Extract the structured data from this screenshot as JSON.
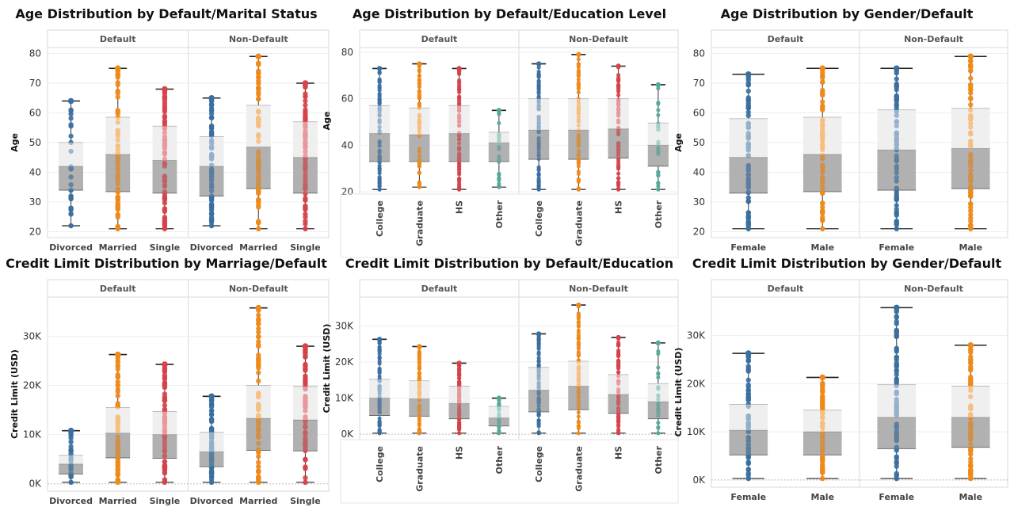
{
  "colors": {
    "blue": "#3b6fa0",
    "orange": "#ee8a1a",
    "red": "#d6434a",
    "teal": "#55a89a"
  },
  "chart_data": [
    {
      "id": "age-marital",
      "type": "box",
      "title": "Age Distribution by Default/Marital Status",
      "facets": [
        "Default",
        "Non-Default"
      ],
      "categories": [
        "Divorced",
        "Married",
        "Single"
      ],
      "colors": [
        "blue",
        "orange",
        "red"
      ],
      "ylabel": "Age",
      "ylim": [
        18,
        82
      ],
      "yticks": [
        20,
        30,
        40,
        50,
        60,
        70,
        80
      ],
      "ytick_labels": [
        "20",
        "30",
        "40",
        "50",
        "60",
        "70",
        "80"
      ],
      "rotate_labels": false,
      "boxes": [
        [
          {
            "min": 22,
            "q1": 34,
            "median": 42,
            "q3": 50,
            "max": 64
          },
          {
            "min": 21,
            "q1": 33.5,
            "median": 46,
            "q3": 58.5,
            "max": 75
          },
          {
            "min": 21,
            "q1": 33,
            "median": 44,
            "q3": 55.5,
            "max": 68
          }
        ],
        [
          {
            "min": 22,
            "q1": 32,
            "median": 42,
            "q3": 52,
            "max": 65
          },
          {
            "min": 21,
            "q1": 34.5,
            "median": 48.5,
            "q3": 62.5,
            "max": 79
          },
          {
            "min": 21,
            "q1": 33,
            "median": 45,
            "q3": 57,
            "max": 70
          }
        ]
      ]
    },
    {
      "id": "age-education",
      "type": "box",
      "title": "Age Distribution by Default/Education Level",
      "facets": [
        "Default",
        "Non-Default"
      ],
      "categories": [
        "College",
        "Graduate",
        "HS",
        "Other"
      ],
      "colors": [
        "blue",
        "orange",
        "red",
        "teal"
      ],
      "ylabel": "Age",
      "ylim": [
        19,
        82
      ],
      "yticks": [
        20,
        40,
        60,
        80
      ],
      "ytick_labels": [
        "20",
        "40",
        "60",
        "80"
      ],
      "rotate_labels": true,
      "boxes": [
        [
          {
            "min": 21,
            "q1": 33,
            "median": 45,
            "q3": 57,
            "max": 73
          },
          {
            "min": 22,
            "q1": 33,
            "median": 44.5,
            "q3": 56,
            "max": 75
          },
          {
            "min": 21,
            "q1": 33,
            "median": 45,
            "q3": 57,
            "max": 73
          },
          {
            "min": 22,
            "q1": 33,
            "median": 41,
            "q3": 45.5,
            "max": 55
          }
        ],
        [
          {
            "min": 21,
            "q1": 34,
            "median": 46.5,
            "q3": 60,
            "max": 75
          },
          {
            "min": 21,
            "q1": 34,
            "median": 46.5,
            "q3": 60,
            "max": 79
          },
          {
            "min": 21,
            "q1": 34.5,
            "median": 47,
            "q3": 60,
            "max": 74
          },
          {
            "min": 21,
            "q1": 31,
            "median": 40,
            "q3": 49.5,
            "max": 66
          }
        ]
      ]
    },
    {
      "id": "age-gender",
      "type": "box",
      "title": "Age Distribution by Gender/Default",
      "facets": [
        "Default",
        "Non-Default"
      ],
      "categories": [
        "Female",
        "Male"
      ],
      "colors": [
        "blue",
        "orange"
      ],
      "ylabel": "Age",
      "ylim": [
        18,
        82
      ],
      "yticks": [
        20,
        30,
        40,
        50,
        60,
        70,
        80
      ],
      "ytick_labels": [
        "20",
        "30",
        "40",
        "50",
        "60",
        "70",
        "80"
      ],
      "rotate_labels": false,
      "boxes": [
        [
          {
            "min": 21,
            "q1": 33,
            "median": 45,
            "q3": 58,
            "max": 73
          },
          {
            "min": 21,
            "q1": 33.5,
            "median": 46,
            "q3": 58.5,
            "max": 75
          }
        ],
        [
          {
            "min": 21,
            "q1": 34,
            "median": 47.5,
            "q3": 61,
            "max": 75
          },
          {
            "min": 21,
            "q1": 34.5,
            "median": 48,
            "q3": 61.5,
            "max": 79
          }
        ]
      ]
    },
    {
      "id": "credit-marriage",
      "type": "box",
      "title": "Credit Limit Distribution by Marriage/Default",
      "facets": [
        "Default",
        "Non-Default"
      ],
      "categories": [
        "Divorced",
        "Married",
        "Single"
      ],
      "colors": [
        "blue",
        "orange",
        "red"
      ],
      "ylabel": "Credit Limit (USD)",
      "ylim": [
        -1500,
        38000
      ],
      "yticks": [
        0,
        10000,
        20000,
        30000
      ],
      "ytick_labels": [
        "0K",
        "10K",
        "20K",
        "30K"
      ],
      "rotate_labels": false,
      "boxes": [
        [
          {
            "min": 300,
            "q1": 2000,
            "median": 4000,
            "q3": 5800,
            "max": 10800
          },
          {
            "min": 300,
            "q1": 5300,
            "median": 10300,
            "q3": 15500,
            "max": 26300
          },
          {
            "min": 300,
            "q1": 5200,
            "median": 10000,
            "q3": 14700,
            "max": 24300
          }
        ],
        [
          {
            "min": 300,
            "q1": 3500,
            "median": 6500,
            "q3": 10500,
            "max": 17800
          },
          {
            "min": 300,
            "q1": 6800,
            "median": 13300,
            "q3": 20000,
            "max": 35800
          },
          {
            "min": 300,
            "q1": 6700,
            "median": 13000,
            "q3": 19800,
            "max": 28000
          }
        ]
      ]
    },
    {
      "id": "credit-education",
      "type": "box",
      "title": "Credit Limit Distribution by Default/Education",
      "facets": [
        "Default",
        "Non-Default"
      ],
      "categories": [
        "College",
        "Graduate",
        "HS",
        "Other"
      ],
      "colors": [
        "blue",
        "orange",
        "red",
        "teal"
      ],
      "ylabel": "Credit Limit (USD)",
      "ylim": [
        -1500,
        38000
      ],
      "yticks": [
        0,
        10000,
        20000,
        30000
      ],
      "ytick_labels": [
        "0K",
        "10K",
        "20K",
        "30K"
      ],
      "rotate_labels": true,
      "boxes": [
        [
          {
            "min": 300,
            "q1": 5200,
            "median": 10000,
            "q3": 15200,
            "max": 26300
          },
          {
            "min": 300,
            "q1": 5000,
            "median": 9800,
            "q3": 14800,
            "max": 24300
          },
          {
            "min": 300,
            "q1": 4300,
            "median": 8500,
            "q3": 13300,
            "max": 19700
          },
          {
            "min": 300,
            "q1": 2300,
            "median": 4500,
            "q3": 7700,
            "max": 10000
          }
        ],
        [
          {
            "min": 300,
            "q1": 6200,
            "median": 12200,
            "q3": 18500,
            "max": 27800
          },
          {
            "min": 300,
            "q1": 6800,
            "median": 13300,
            "q3": 20200,
            "max": 35800
          },
          {
            "min": 300,
            "q1": 5800,
            "median": 11000,
            "q3": 16500,
            "max": 26800
          },
          {
            "min": 300,
            "q1": 4300,
            "median": 9000,
            "q3": 14000,
            "max": 25300
          }
        ]
      ]
    },
    {
      "id": "credit-gender",
      "type": "box",
      "title": "Credit Limit Distribution by Gender/Default",
      "facets": [
        "Default",
        "Non-Default"
      ],
      "categories": [
        "Female",
        "Male"
      ],
      "colors": [
        "blue",
        "orange"
      ],
      "ylabel": "Credit Limit (USD)",
      "ylim": [
        -1500,
        38000
      ],
      "yticks": [
        0,
        10000,
        20000,
        30000
      ],
      "ytick_labels": [
        "0K",
        "10K",
        "20K",
        "30K"
      ],
      "rotate_labels": false,
      "boxes": [
        [
          {
            "min": 300,
            "q1": 5200,
            "median": 10300,
            "q3": 15700,
            "max": 26300
          },
          {
            "min": 300,
            "q1": 5200,
            "median": 10000,
            "q3": 14500,
            "max": 21300
          }
        ],
        [
          {
            "min": 300,
            "q1": 6500,
            "median": 13000,
            "q3": 19800,
            "max": 35800
          },
          {
            "min": 300,
            "q1": 6800,
            "median": 13000,
            "q3": 19500,
            "max": 28000
          }
        ]
      ]
    }
  ]
}
